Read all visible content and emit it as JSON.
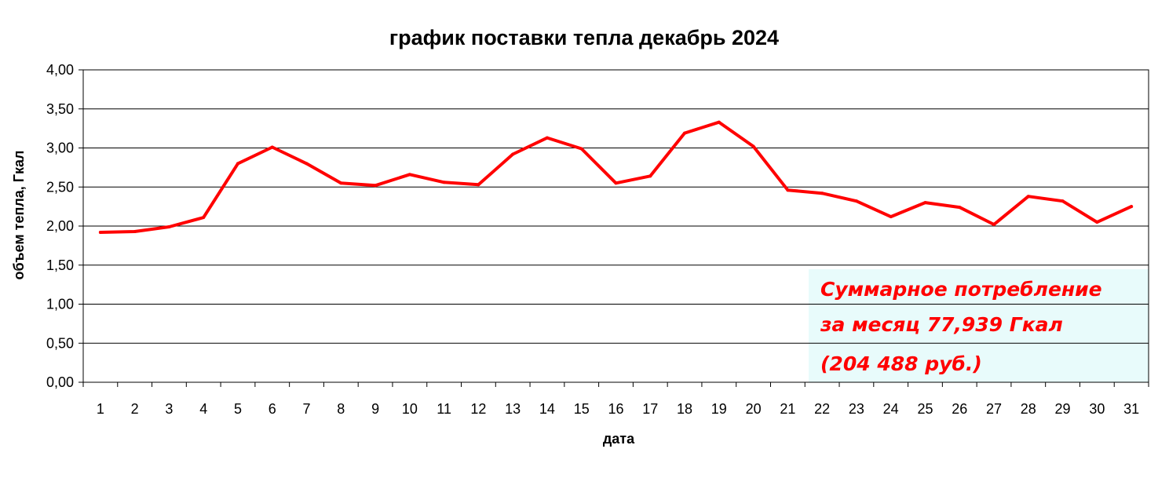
{
  "chart_data": {
    "type": "line",
    "title": "график поставки тепла декабрь 2024",
    "xlabel": "дата",
    "ylabel": "объем тепла, Гкал",
    "ylim": [
      0,
      4
    ],
    "y_ticks": [
      "0,00",
      "0,50",
      "1,00",
      "1,50",
      "2,00",
      "2,50",
      "3,00",
      "3,50",
      "4,00"
    ],
    "grid": true,
    "legend": "none",
    "categories": [
      "1",
      "2",
      "3",
      "4",
      "5",
      "6",
      "7",
      "8",
      "9",
      "10",
      "11",
      "12",
      "13",
      "14",
      "15",
      "16",
      "17",
      "18",
      "19",
      "20",
      "21",
      "22",
      "23",
      "24",
      "25",
      "26",
      "27",
      "28",
      "29",
      "30",
      "31"
    ],
    "series": [
      {
        "color": "#ff0000",
        "values": [
          1.92,
          1.93,
          1.99,
          2.11,
          2.8,
          3.01,
          2.8,
          2.55,
          2.52,
          2.66,
          2.56,
          2.53,
          2.92,
          3.13,
          2.99,
          2.55,
          2.64,
          3.19,
          3.33,
          3.02,
          2.46,
          2.42,
          2.32,
          2.12,
          2.3,
          2.24,
          2.02,
          2.38,
          2.32,
          2.05,
          2.25
        ]
      }
    ],
    "annotation": {
      "lines": [
        "Суммарное потребление",
        "за месяц 77,939 Гкал",
        "(204 488 руб.)"
      ],
      "text_color": "#ff0000",
      "background": "#e8fbfb",
      "placement": "bottom-right"
    }
  }
}
